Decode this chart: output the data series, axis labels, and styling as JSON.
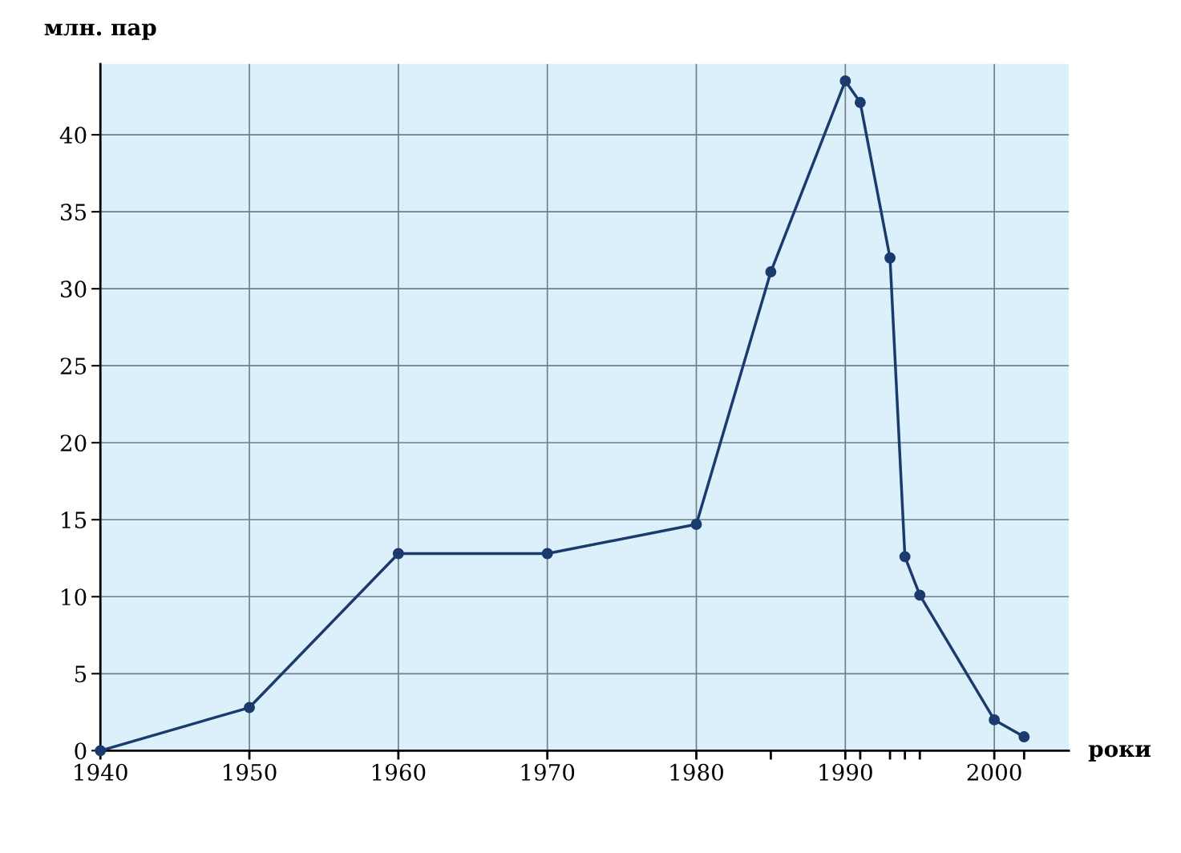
{
  "chart_data": {
    "type": "line",
    "ylabel": "млн. пар",
    "xlabel": "роки",
    "x": [
      1940,
      1950,
      1960,
      1970,
      1980,
      1985,
      1990,
      1991,
      1993,
      1994,
      1995,
      2000,
      2002
    ],
    "series": [
      {
        "color": "#1b3a6e",
        "values": [
          0,
          2.8,
          12.8,
          12.8,
          14.7,
          31.1,
          43.5,
          42.1,
          32.0,
          12.6,
          10.1,
          2.0,
          0.9
        ]
      }
    ],
    "xlim": [
      1940,
      2005
    ],
    "ylim": [
      0,
      44.6
    ],
    "xticks": [
      1940,
      1950,
      1960,
      1970,
      1980,
      {
        "value": 1985,
        "label": null
      },
      1990,
      {
        "value": 1991,
        "label": null
      },
      {
        "value": 1993,
        "label": null
      },
      {
        "value": 1994,
        "label": null
      },
      {
        "value": 1995,
        "label": null
      },
      2000,
      {
        "value": 2002,
        "label": null
      }
    ],
    "yticks": [
      0,
      5,
      10,
      15,
      20,
      25,
      30,
      35,
      40
    ],
    "grid": true,
    "marker": "circle",
    "line_style": "solid"
  }
}
